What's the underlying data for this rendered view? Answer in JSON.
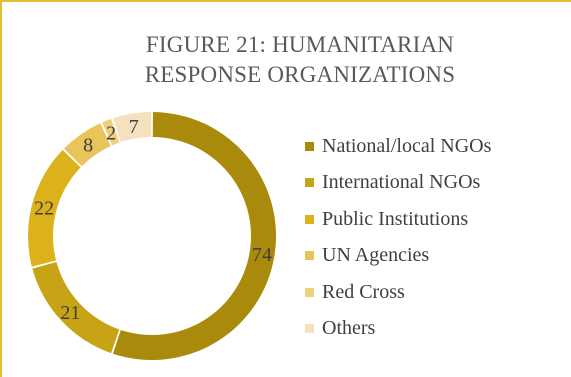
{
  "chart_data": {
    "type": "pie",
    "title_lines": [
      "FIGURE 21: HUMANITARIAN",
      "RESPONSE ORGANIZATIONS"
    ],
    "categories": [
      "National/local NGOs",
      "International NGOs",
      "Public Institutions",
      "UN Agencies",
      "Red Cross",
      "Others"
    ],
    "values": [
      74,
      21,
      22,
      8,
      2,
      7
    ],
    "colors": [
      "#a98a0a",
      "#c7a315",
      "#dcb11c",
      "#e8c45a",
      "#efd07c",
      "#f5e1bd"
    ],
    "legend_position": "right"
  }
}
